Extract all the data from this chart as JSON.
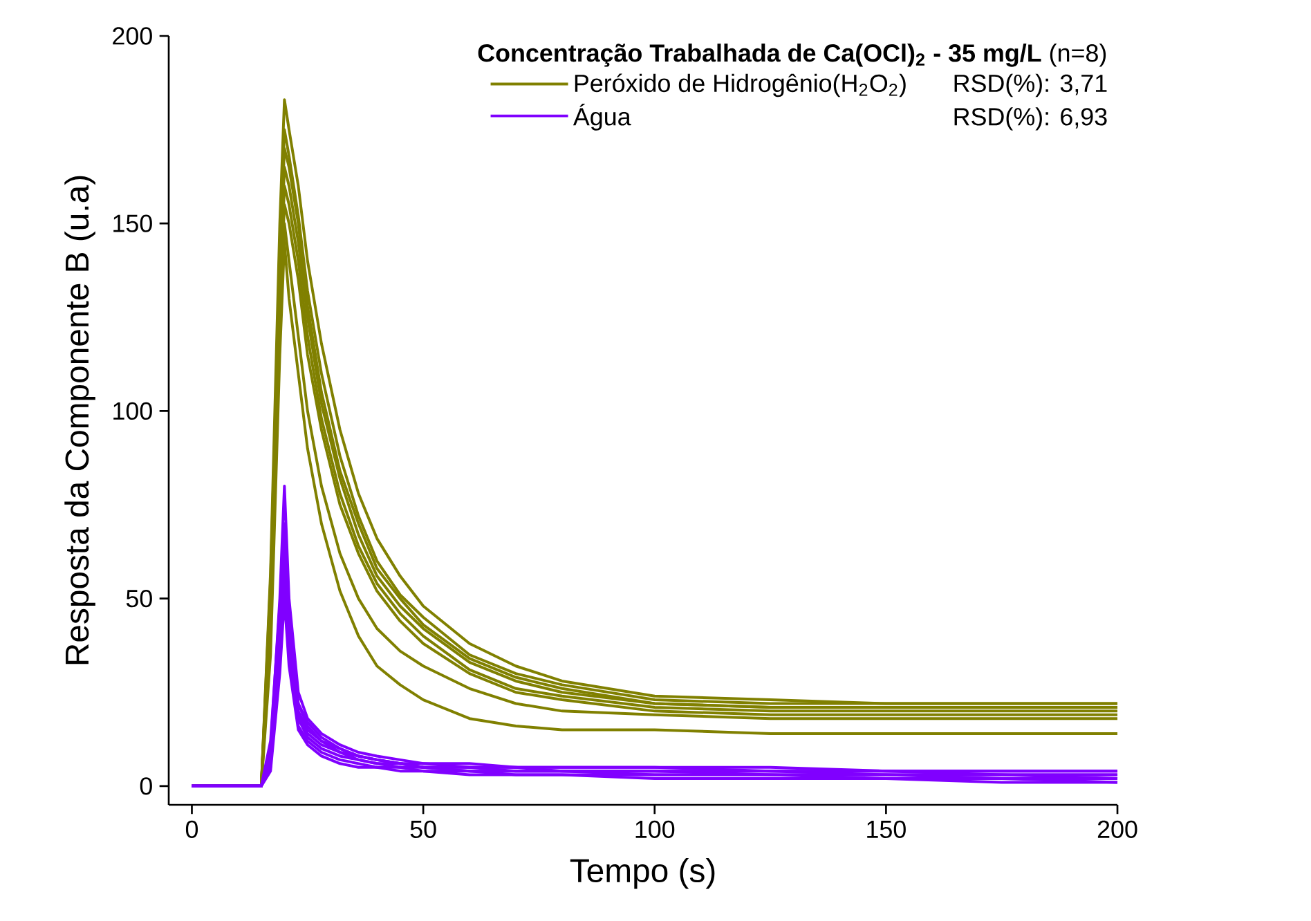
{
  "chart_data": {
    "type": "line",
    "xlabel": "Tempo (s)",
    "ylabel": "Resposta da Componente B (u.a)",
    "legend_title": "**Concentração Trabalhada de Ca(OCl)$_{2}$ - 35 mg/L** (n=8)",
    "annotations": [
      "RSD(%): 3,71",
      "RSD(%): 6,93"
    ],
    "legend": "top right",
    "xlim": [
      -5,
      200
    ],
    "ylim": [
      -5,
      200
    ],
    "xticks": [
      0,
      50,
      100,
      150,
      200
    ],
    "yticks": [
      0,
      50,
      100,
      150,
      200
    ],
    "x": [
      0,
      15,
      17,
      19,
      20,
      21,
      23,
      25,
      28,
      32,
      36,
      40,
      45,
      50,
      60,
      70,
      80,
      100,
      125,
      150,
      175,
      200
    ],
    "series": [
      {
        "name": "Peróxido de Hidrogênio(H$_{2}$O$_{2}$)",
        "color": "#808000",
        "values": [
          0,
          0,
          57,
          150,
          183,
          175,
          160,
          140,
          118,
          95,
          78,
          66,
          56,
          48,
          38,
          32,
          28,
          24,
          23,
          22,
          22,
          22
        ]
      },
      {
        "color": "#808000",
        "values": [
          0,
          0,
          50,
          145,
          175,
          168,
          152,
          132,
          110,
          88,
          72,
          60,
          51,
          45,
          35,
          30,
          27,
          23,
          22,
          22,
          22,
          22
        ]
      },
      {
        "color": "#808000",
        "values": [
          0,
          0,
          55,
          140,
          170,
          165,
          150,
          128,
          105,
          84,
          70,
          58,
          50,
          43,
          34,
          29,
          26,
          22,
          21,
          21,
          21,
          21
        ]
      },
      {
        "color": "#808000",
        "values": [
          0,
          0,
          45,
          135,
          165,
          160,
          145,
          125,
          102,
          82,
          67,
          56,
          48,
          42,
          33,
          28,
          25,
          22,
          21,
          21,
          21,
          21
        ]
      },
      {
        "color": "#808000",
        "values": [
          0,
          0,
          52,
          130,
          160,
          155,
          140,
          120,
          98,
          78,
          64,
          54,
          46,
          40,
          31,
          26,
          24,
          21,
          20,
          20,
          20,
          20
        ]
      },
      {
        "color": "#808000",
        "values": [
          0,
          0,
          48,
          128,
          155,
          150,
          135,
          115,
          95,
          75,
          62,
          52,
          44,
          38,
          30,
          25,
          23,
          20,
          19,
          19,
          19,
          19
        ]
      },
      {
        "color": "#808000",
        "values": [
          0,
          0,
          40,
          120,
          150,
          140,
          120,
          100,
          80,
          62,
          50,
          42,
          36,
          32,
          26,
          22,
          20,
          19,
          18,
          18,
          18,
          18
        ]
      },
      {
        "color": "#808000",
        "values": [
          0,
          0,
          35,
          115,
          145,
          130,
          110,
          90,
          70,
          52,
          40,
          32,
          27,
          23,
          18,
          16,
          15,
          15,
          14,
          14,
          14,
          14
        ]
      },
      {
        "name": "Água",
        "color": "#8000ff",
        "values": [
          0,
          0,
          10,
          50,
          80,
          50,
          25,
          18,
          14,
          11,
          9,
          8,
          7,
          6,
          6,
          5,
          5,
          5,
          5,
          4,
          4,
          4
        ]
      },
      {
        "color": "#8000ff",
        "values": [
          0,
          0,
          8,
          45,
          70,
          45,
          22,
          17,
          13,
          10,
          8,
          7,
          6,
          6,
          5,
          5,
          5,
          5,
          4,
          4,
          4,
          4
        ]
      },
      {
        "color": "#8000ff",
        "values": [
          0,
          0,
          12,
          48,
          65,
          42,
          22,
          16,
          12,
          10,
          8,
          7,
          6,
          5,
          5,
          5,
          4,
          4,
          4,
          4,
          3,
          3
        ]
      },
      {
        "color": "#8000ff",
        "values": [
          0,
          0,
          6,
          40,
          60,
          40,
          20,
          15,
          12,
          9,
          8,
          7,
          6,
          5,
          5,
          4,
          4,
          4,
          4,
          3,
          3,
          3
        ]
      },
      {
        "color": "#8000ff",
        "values": [
          0,
          0,
          9,
          42,
          58,
          38,
          19,
          14,
          11,
          9,
          7,
          6,
          6,
          5,
          4,
          4,
          4,
          4,
          3,
          3,
          3,
          2
        ]
      },
      {
        "color": "#8000ff",
        "values": [
          0,
          0,
          5,
          38,
          55,
          36,
          18,
          13,
          10,
          8,
          7,
          6,
          5,
          5,
          4,
          4,
          4,
          3,
          3,
          3,
          2,
          2
        ]
      },
      {
        "color": "#8000ff",
        "values": [
          0,
          0,
          7,
          35,
          52,
          34,
          16,
          12,
          9,
          7,
          6,
          5,
          5,
          4,
          4,
          3,
          3,
          3,
          3,
          2,
          2,
          1
        ]
      },
      {
        "color": "#8000ff",
        "values": [
          0,
          0,
          4,
          30,
          50,
          32,
          15,
          11,
          8,
          6,
          5,
          5,
          4,
          4,
          3,
          3,
          3,
          2,
          2,
          2,
          1,
          1
        ]
      }
    ]
  }
}
